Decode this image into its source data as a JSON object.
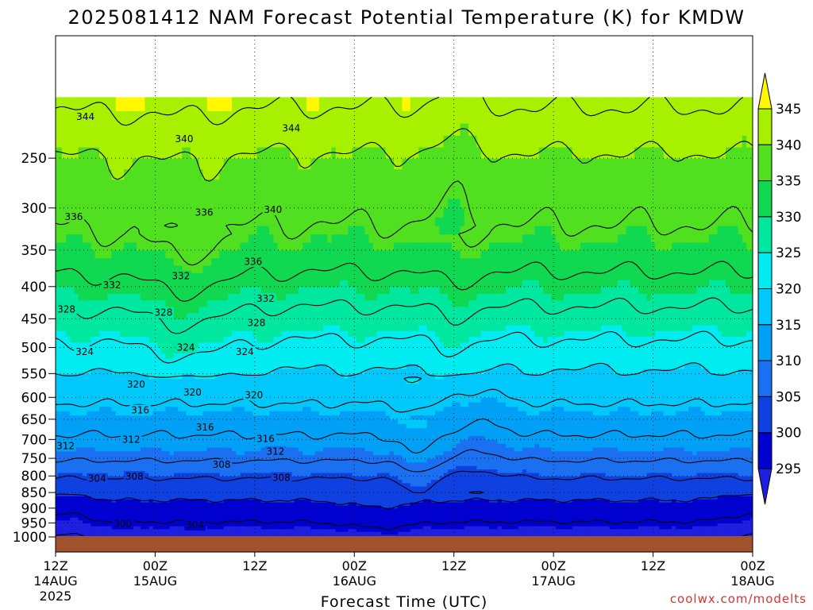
{
  "chart_data": {
    "type": "heatmap",
    "title": "2025081412 NAM Forecast Potential Temperature (K) for KMDW",
    "xlabel": "Forecast Time (UTC)",
    "ylabel": "",
    "credit": "coolwx.com/modelts",
    "y_scale": "log-pressure",
    "ylim": [
      1000,
      200
    ],
    "y_ticks": [
      "250",
      "300",
      "350",
      "400",
      "450",
      "500",
      "550",
      "600",
      "650",
      "700",
      "750",
      "800",
      "850",
      "900",
      "950",
      "1000"
    ],
    "x_ticks": [
      {
        "time": "12Z",
        "date": "14AUG",
        "year": "2025"
      },
      {
        "time": "00Z",
        "date": "15AUG",
        "year": ""
      },
      {
        "time": "12Z",
        "date": "",
        "year": ""
      },
      {
        "time": "00Z",
        "date": "16AUG",
        "year": ""
      },
      {
        "time": "12Z",
        "date": "",
        "year": ""
      },
      {
        "time": "00Z",
        "date": "17AUG",
        "year": ""
      },
      {
        "time": "12Z",
        "date": "",
        "year": ""
      },
      {
        "time": "00Z",
        "date": "18AUG",
        "year": ""
      }
    ],
    "colorbar": {
      "levels": [
        "295",
        "300",
        "305",
        "310",
        "315",
        "320",
        "325",
        "330",
        "335",
        "340",
        "345"
      ],
      "colors": [
        "#1f1fe0",
        "#0000d0",
        "#0f40e0",
        "#1a70f0",
        "#00a0f6",
        "#00c8fa",
        "#00ecf0",
        "#00e8a0",
        "#10d850",
        "#50e020",
        "#a6f000",
        "#fff800"
      ],
      "extend": "both"
    },
    "contour_interval": 4,
    "contour_labels": [
      {
        "text": "344",
        "h": 3.6,
        "p": 215
      },
      {
        "text": "340",
        "h": 15.5,
        "p": 233
      },
      {
        "text": "344",
        "h": 28.4,
        "p": 224
      },
      {
        "text": "336",
        "h": 2.2,
        "p": 310
      },
      {
        "text": "336",
        "h": 17.9,
        "p": 305
      },
      {
        "text": "340",
        "h": 26.2,
        "p": 302
      },
      {
        "text": "336",
        "h": 23.8,
        "p": 365
      },
      {
        "text": "332",
        "h": 6.8,
        "p": 398
      },
      {
        "text": "332",
        "h": 15.1,
        "p": 385
      },
      {
        "text": "332",
        "h": 25.3,
        "p": 418
      },
      {
        "text": "328",
        "h": 1.3,
        "p": 435
      },
      {
        "text": "328",
        "h": 13.0,
        "p": 440
      },
      {
        "text": "328",
        "h": 24.2,
        "p": 457
      },
      {
        "text": "324",
        "h": 3.5,
        "p": 508
      },
      {
        "text": "324",
        "h": 15.7,
        "p": 500
      },
      {
        "text": "324",
        "h": 22.8,
        "p": 508
      },
      {
        "text": "320",
        "h": 9.7,
        "p": 572
      },
      {
        "text": "320",
        "h": 16.5,
        "p": 589
      },
      {
        "text": "320",
        "h": 23.9,
        "p": 595
      },
      {
        "text": "316",
        "h": 10.2,
        "p": 629
      },
      {
        "text": "316",
        "h": 18.0,
        "p": 670
      },
      {
        "text": "316",
        "h": 25.3,
        "p": 698
      },
      {
        "text": "312",
        "h": 1.2,
        "p": 717
      },
      {
        "text": "312",
        "h": 9.1,
        "p": 700
      },
      {
        "text": "312",
        "h": 26.5,
        "p": 732
      },
      {
        "text": "308",
        "h": 20.0,
        "p": 768
      },
      {
        "text": "304",
        "h": 5.0,
        "p": 808
      },
      {
        "text": "308",
        "h": 9.5,
        "p": 802
      },
      {
        "text": "308",
        "h": 27.2,
        "p": 805
      },
      {
        "text": "300",
        "h": 8.1,
        "p": 953
      },
      {
        "text": "304",
        "h": 16.8,
        "p": 957
      }
    ]
  }
}
